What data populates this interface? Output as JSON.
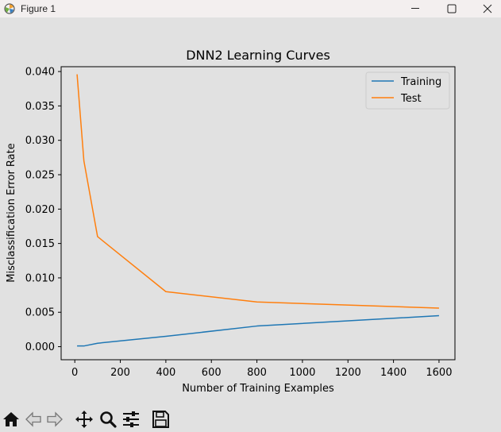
{
  "window": {
    "title": "Figure 1",
    "icons": [
      "matplotlib-logo-icon",
      "minimize-icon",
      "maximize-icon",
      "close-icon"
    ]
  },
  "toolbar": {
    "icons": [
      "home-icon",
      "back-arrow-icon",
      "forward-arrow-icon",
      "pan-icon",
      "zoom-icon",
      "configure-subplots-icon",
      "save-icon"
    ]
  },
  "chart_data": {
    "type": "line",
    "title": "DNN2 Learning Curves",
    "xlabel": "Number of Training Examples",
    "ylabel": "Misclassification Error Rate",
    "xlim": [
      -60,
      1670
    ],
    "ylim": [
      -0.0019,
      0.0407
    ],
    "xticks": [
      0,
      200,
      400,
      600,
      800,
      1000,
      1200,
      1400,
      1600
    ],
    "xtick_labels": [
      "0",
      "200",
      "400",
      "600",
      "800",
      "1000",
      "1200",
      "1400",
      "1600"
    ],
    "yticks": [
      0.0,
      0.005,
      0.01,
      0.015,
      0.02,
      0.025,
      0.03,
      0.035,
      0.04
    ],
    "ytick_labels": [
      "0.000",
      "0.005",
      "0.010",
      "0.015",
      "0.020",
      "0.025",
      "0.030",
      "0.035",
      "0.040"
    ],
    "grid": false,
    "legend_position": "top-right",
    "series": [
      {
        "name": "Training",
        "color": "#1f77b4",
        "x": [
          10,
          40,
          100,
          400,
          800,
          1600
        ],
        "y": [
          0.0001,
          0.0001,
          0.0005,
          0.0015,
          0.003,
          0.0045
        ]
      },
      {
        "name": "Test",
        "color": "#ff7f0e",
        "x": [
          10,
          40,
          100,
          400,
          800,
          1600
        ],
        "y": [
          0.0396,
          0.027,
          0.016,
          0.008,
          0.0065,
          0.0056
        ]
      }
    ]
  }
}
